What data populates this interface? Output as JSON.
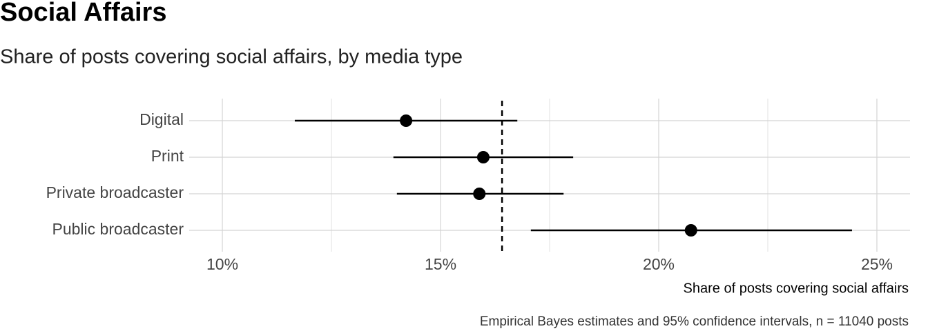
{
  "chart_data": {
    "type": "dot_interval",
    "title": "Social Affairs",
    "subtitle": "Share of posts covering social affairs, by media type",
    "x_label": "Share of posts covering social affairs",
    "caption": "Empirical Bayes estimates and 95% confidence intervals, n = 11040 posts",
    "categories": [
      "Digital",
      "Print",
      "Private broadcaster",
      "Public broadcaster"
    ],
    "values": [
      14.21,
      15.98,
      15.89,
      20.74
    ],
    "lower": [
      11.66,
      13.92,
      14.0,
      17.07
    ],
    "upper": [
      16.76,
      18.04,
      17.82,
      24.43
    ],
    "reference_line": 16.41,
    "color": "#000000",
    "xlim": [
      9.24,
      25.76
    ],
    "xticks": [
      {
        "value": 10,
        "label": "10%"
      },
      {
        "value": 15,
        "label": "15%"
      },
      {
        "value": 20,
        "label": "20%"
      },
      {
        "value": 25,
        "label": "25%"
      }
    ],
    "minor_xticks": [
      12.5,
      17.5,
      22.5
    ],
    "grid": true
  }
}
